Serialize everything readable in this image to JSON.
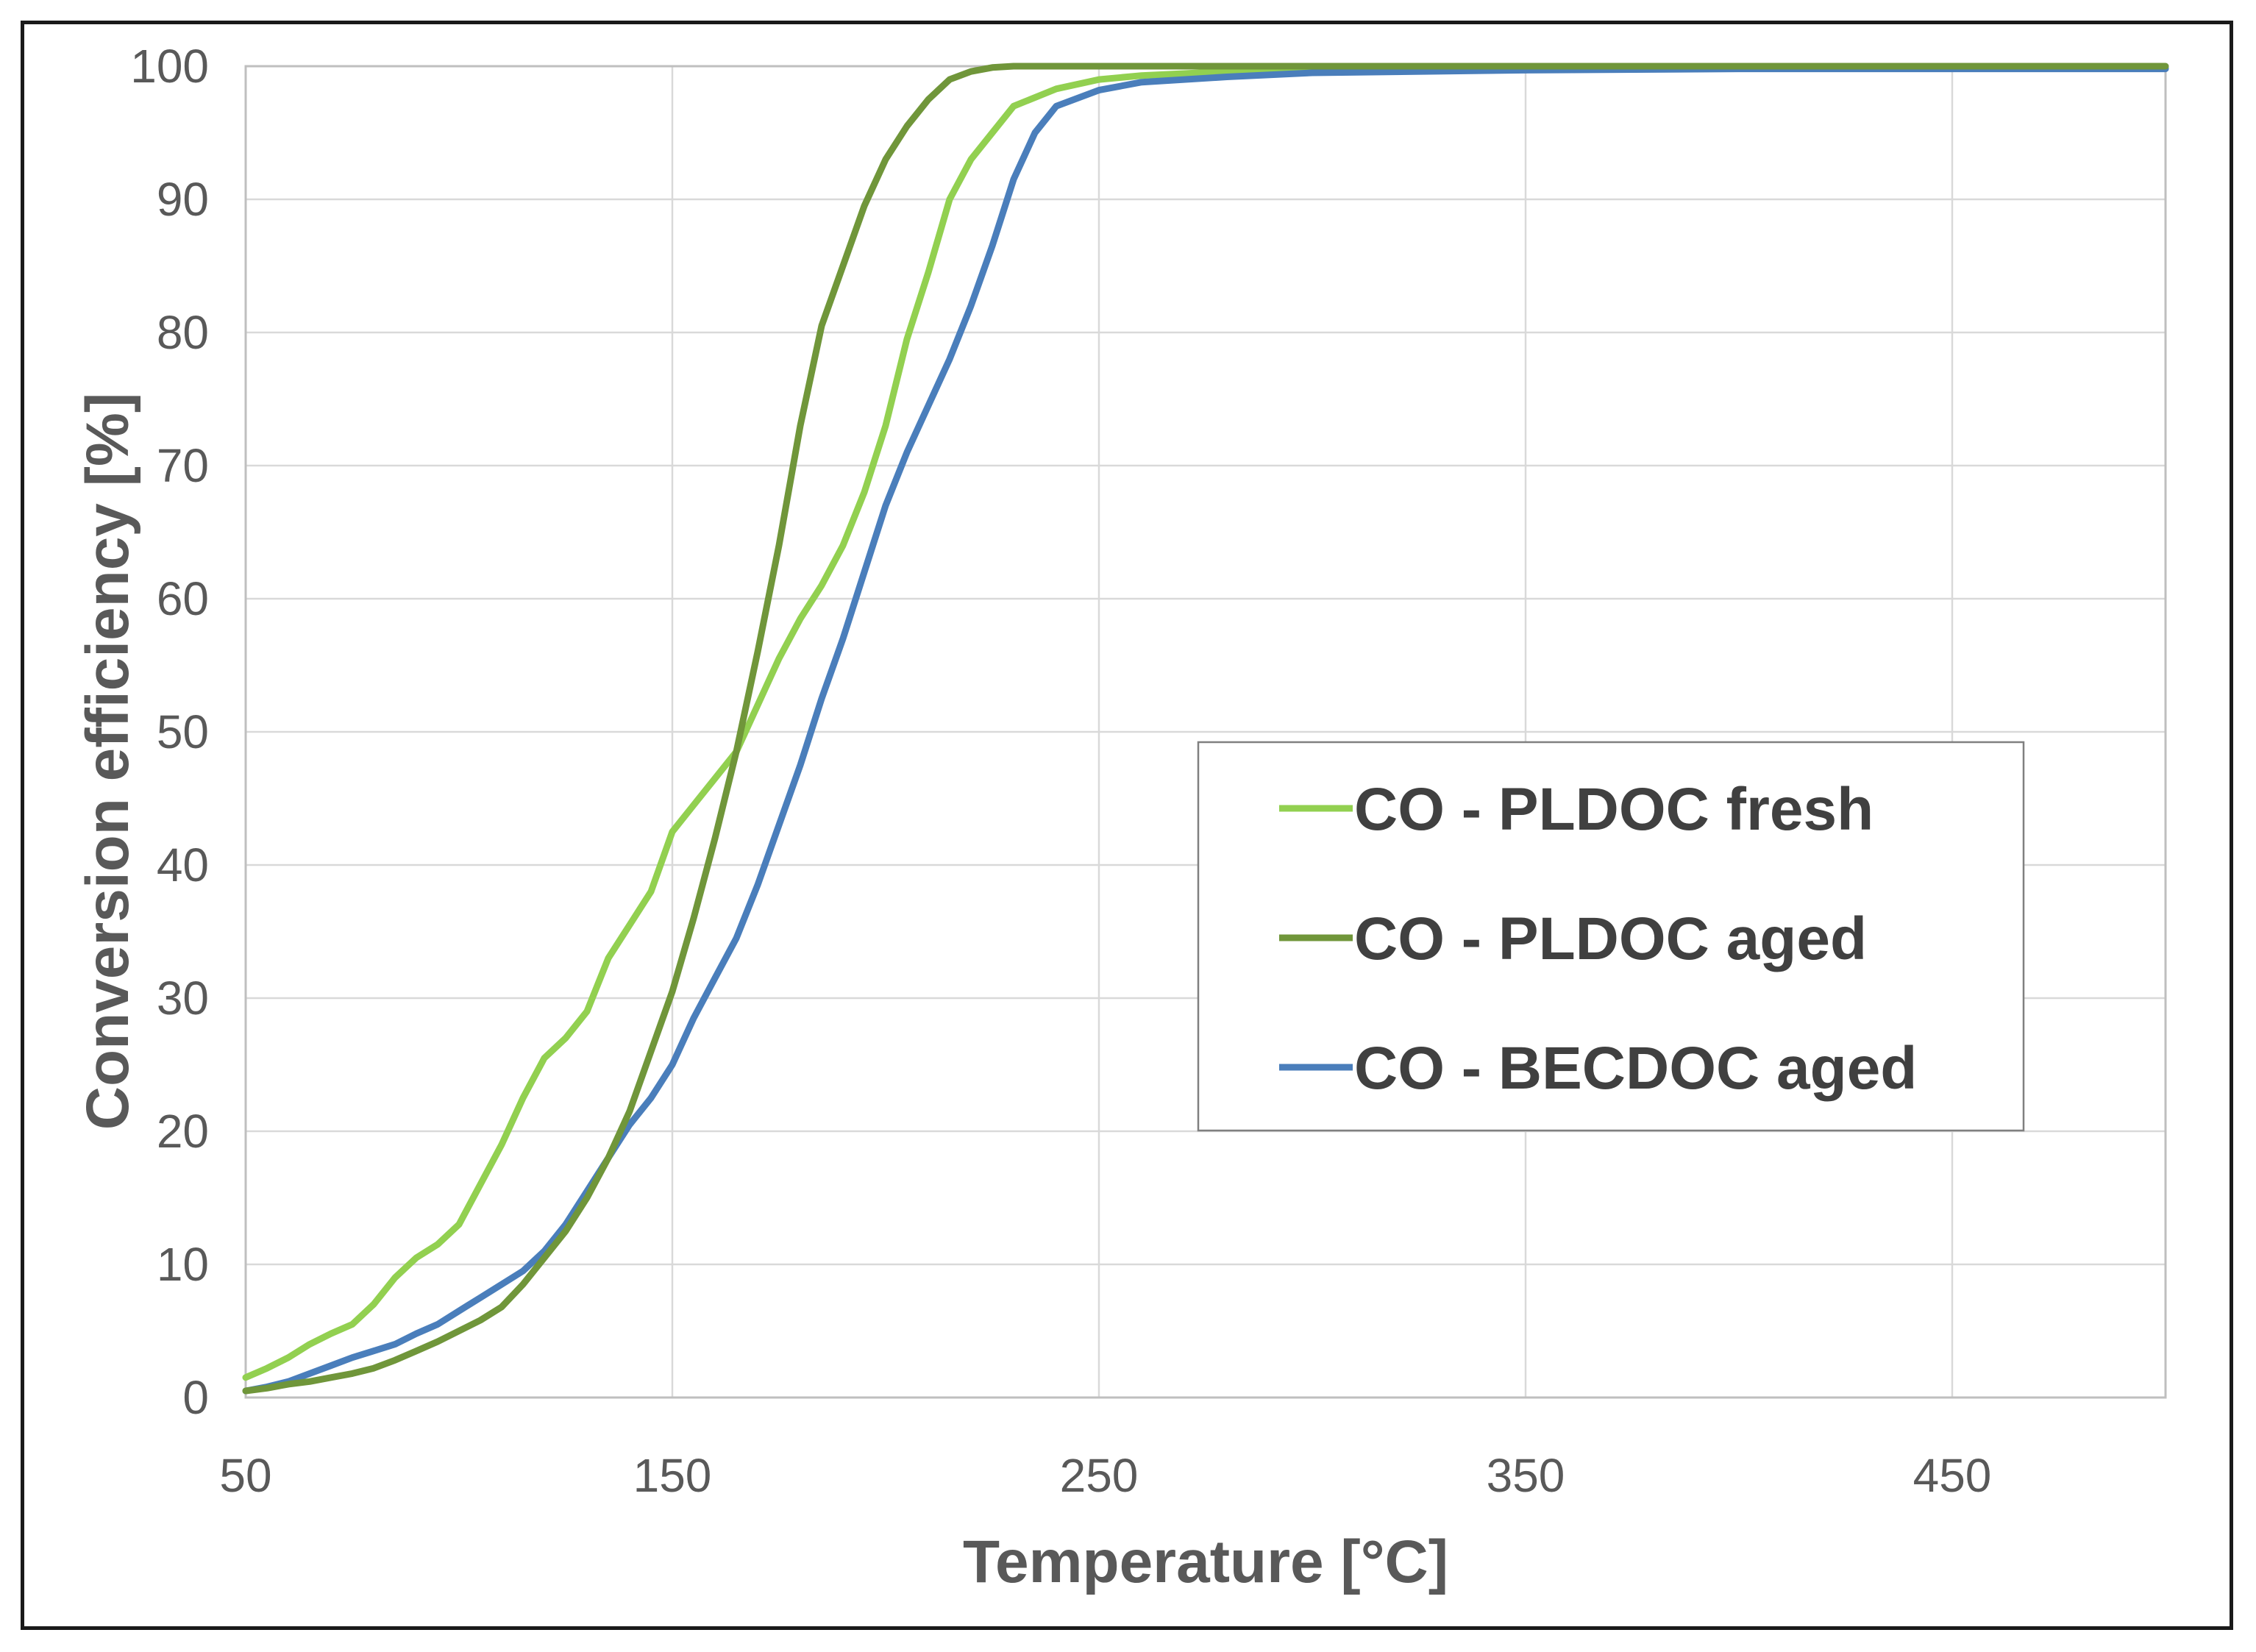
{
  "chart_data": {
    "type": "line",
    "title": "",
    "xlabel": "Temperature [°C]",
    "ylabel": "Conversion efficiency [%]",
    "xlim": [
      50,
      500
    ],
    "ylim": [
      0,
      100
    ],
    "xticks": [
      50,
      150,
      250,
      350,
      450
    ],
    "yticks": [
      0,
      10,
      20,
      30,
      40,
      50,
      60,
      70,
      80,
      90,
      100
    ],
    "grid": true,
    "legend_position": "center-right",
    "series": [
      {
        "name": "CO - PLDOC fresh",
        "color": "#92D050",
        "x": [
          50,
          55,
          60,
          65,
          70,
          75,
          80,
          85,
          90,
          95,
          100,
          105,
          110,
          115,
          120,
          125,
          130,
          135,
          140,
          145,
          150,
          155,
          160,
          165,
          170,
          175,
          180,
          185,
          190,
          195,
          200,
          205,
          210,
          215,
          220,
          225,
          230,
          240,
          250,
          260,
          280,
          300,
          350,
          400,
          450,
          500
        ],
        "y": [
          1.5,
          2.2,
          3,
          4,
          4.8,
          5.5,
          7,
          9,
          10.5,
          11.5,
          13,
          16,
          19,
          22.5,
          25.5,
          27,
          29,
          33,
          35.5,
          38,
          42.5,
          44.5,
          46.5,
          48.5,
          52,
          55.5,
          58.5,
          61,
          64,
          68,
          73,
          79.5,
          84.5,
          90,
          93,
          95,
          97,
          98.3,
          99,
          99.3,
          99.6,
          99.8,
          99.9,
          99.9,
          99.9,
          99.9
        ]
      },
      {
        "name": "CO - PLDOC aged",
        "color": "#70963A",
        "x": [
          50,
          55,
          60,
          65,
          70,
          75,
          80,
          85,
          90,
          95,
          100,
          105,
          110,
          115,
          120,
          125,
          130,
          135,
          140,
          145,
          150,
          155,
          160,
          165,
          170,
          175,
          180,
          185,
          190,
          195,
          200,
          205,
          210,
          215,
          220,
          225,
          230,
          240,
          250,
          300,
          350,
          400,
          450,
          500
        ],
        "y": [
          0.5,
          0.7,
          1,
          1.2,
          1.5,
          1.8,
          2.2,
          2.8,
          3.5,
          4.2,
          5,
          5.8,
          6.8,
          8.5,
          10.5,
          12.5,
          15,
          18,
          21.5,
          26,
          30.5,
          36,
          42,
          48.5,
          56,
          64,
          73,
          80.5,
          85,
          89.5,
          93,
          95.5,
          97.5,
          99,
          99.6,
          99.9,
          100,
          100,
          100,
          100,
          100,
          100,
          100,
          100
        ]
      },
      {
        "name": "CO - BECDOC aged",
        "color": "#4A7EBB",
        "x": [
          50,
          55,
          60,
          65,
          70,
          75,
          80,
          85,
          90,
          95,
          100,
          105,
          110,
          115,
          120,
          125,
          130,
          135,
          140,
          145,
          150,
          155,
          160,
          165,
          170,
          175,
          180,
          185,
          190,
          195,
          200,
          205,
          210,
          215,
          220,
          225,
          230,
          235,
          240,
          250,
          260,
          280,
          300,
          350,
          400,
          450,
          500
        ],
        "y": [
          0.5,
          0.8,
          1.2,
          1.8,
          2.4,
          3,
          3.5,
          4,
          4.8,
          5.5,
          6.5,
          7.5,
          8.5,
          9.5,
          11,
          13,
          15.5,
          18,
          20.5,
          22.5,
          25,
          28.5,
          31.5,
          34.5,
          38.5,
          43,
          47.5,
          52.5,
          57,
          62,
          67,
          71,
          74.5,
          78,
          82,
          86.5,
          91.5,
          95,
          97,
          98.2,
          98.8,
          99.2,
          99.5,
          99.7,
          99.8,
          99.8,
          99.8
        ]
      }
    ]
  }
}
